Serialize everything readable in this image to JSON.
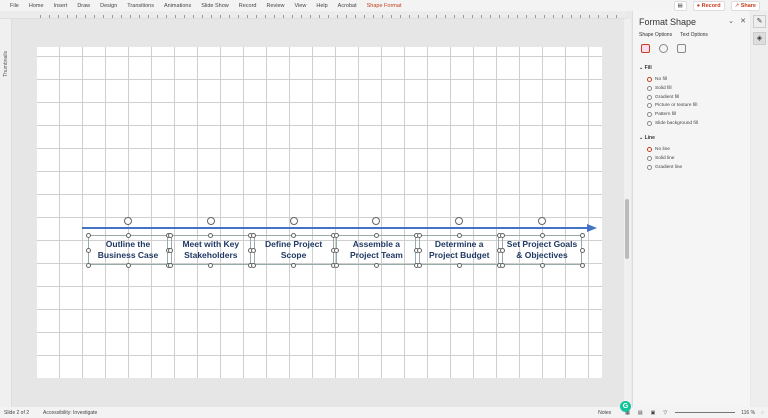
{
  "menu": [
    "File",
    "Home",
    "Insert",
    "Draw",
    "Design",
    "Transitions",
    "Animations",
    "Slide Show",
    "Record",
    "Review",
    "View",
    "Help",
    "Acrobat",
    "Shape Format"
  ],
  "active_tab": "Shape Format",
  "top_right": {
    "record": "Record",
    "share": "Share"
  },
  "thumbnails_label": "Thumbnails",
  "timeline": {
    "steps": [
      "Outline the Business Case",
      "Meet with Key Stakeholders",
      "Define Project Scope",
      "Assemble a Project Team",
      "Determine a Project Budget",
      "Set Project Goals & Objectives"
    ],
    "arrow_color": "#4472c4",
    "text_color": "#1f3864"
  },
  "panel": {
    "title": "Format Shape",
    "tabs": [
      "Shape Options",
      "Text Options"
    ],
    "fill": {
      "label": "Fill",
      "options": [
        "No fill",
        "Solid fill",
        "Gradient fill",
        "Picture or texture fill",
        "Pattern fill",
        "Slide background fill"
      ],
      "selected": "No fill"
    },
    "line": {
      "label": "Line",
      "options": [
        "No line",
        "Solid line",
        "Gradient line"
      ],
      "selected": "No line"
    }
  },
  "status": {
    "slide": "Slide 2 of 2",
    "accessibility": "Accessibility: Investigate",
    "notes": "Notes",
    "zoom": "116 %"
  }
}
